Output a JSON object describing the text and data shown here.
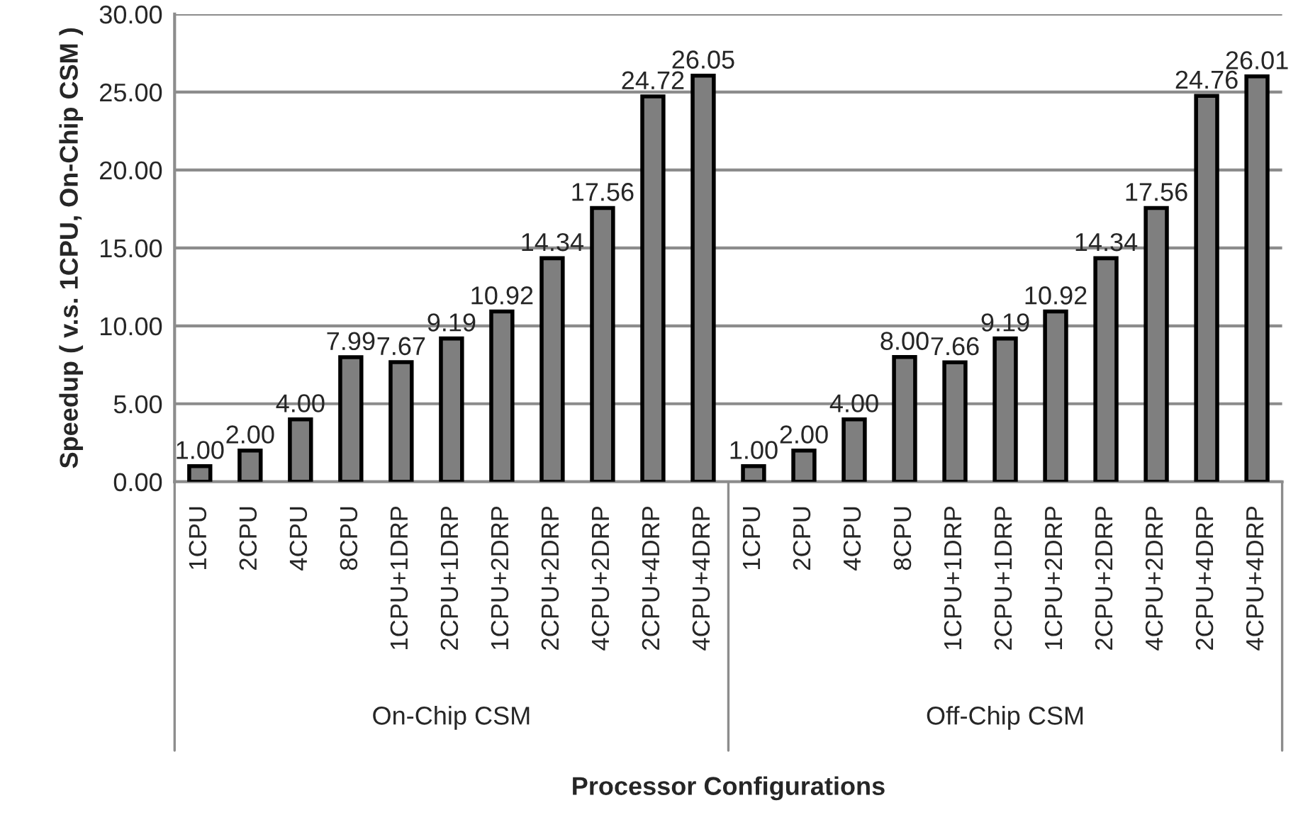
{
  "chart_data": {
    "type": "bar",
    "categories": [
      "1CPU",
      "2CPU",
      "4CPU",
      "8CPU",
      "1CPU+1DRP",
      "2CPU+1DRP",
      "1CPU+2DRP",
      "2CPU+2DRP",
      "4CPU+2DRP",
      "2CPU+4DRP",
      "4CPU+4DRP",
      "1CPU",
      "2CPU",
      "4CPU",
      "8CPU",
      "1CPU+1DRP",
      "2CPU+1DRP",
      "1CPU+2DRP",
      "2CPU+2DRP",
      "4CPU+2DRP",
      "2CPU+4DRP",
      "4CPU+4DRP"
    ],
    "values": [
      1.0,
      2.0,
      4.0,
      7.99,
      7.67,
      9.19,
      10.92,
      14.34,
      17.56,
      24.72,
      26.05,
      1.0,
      2.0,
      4.0,
      8.0,
      7.66,
      9.19,
      10.92,
      14.34,
      17.56,
      24.76,
      26.01
    ],
    "value_labels": [
      "1.00",
      "2.00",
      "4.00",
      "7.99",
      "7.67",
      "9.19",
      "10.92",
      "14.34",
      "17.56",
      "24.72",
      "26.05",
      "1.00",
      "2.00",
      "4.00",
      "8.00",
      "7.66",
      "9.19",
      "10.92",
      "14.34",
      "17.56",
      "24.76",
      "26.01"
    ],
    "color": "#7f7f7f",
    "xlabel": "Processor Configurations",
    "ylabel": "Speedup ( v.s. 1CPU, On-Chip CSM )",
    "annotations": [
      "On-Chip CSM",
      "Off-Chip CSM"
    ],
    "ylim": [
      0,
      30
    ],
    "yticks": [
      {
        "value": 0,
        "label": "0.00"
      },
      {
        "value": 5,
        "label": "5.00"
      },
      {
        "value": 10,
        "label": "10.00"
      },
      {
        "value": 15,
        "label": "15.00"
      },
      {
        "value": 20,
        "label": "20.00"
      },
      {
        "value": 25,
        "label": "25.00"
      },
      {
        "value": 30,
        "label": "30.00"
      }
    ],
    "grid": "y",
    "legend": false
  }
}
